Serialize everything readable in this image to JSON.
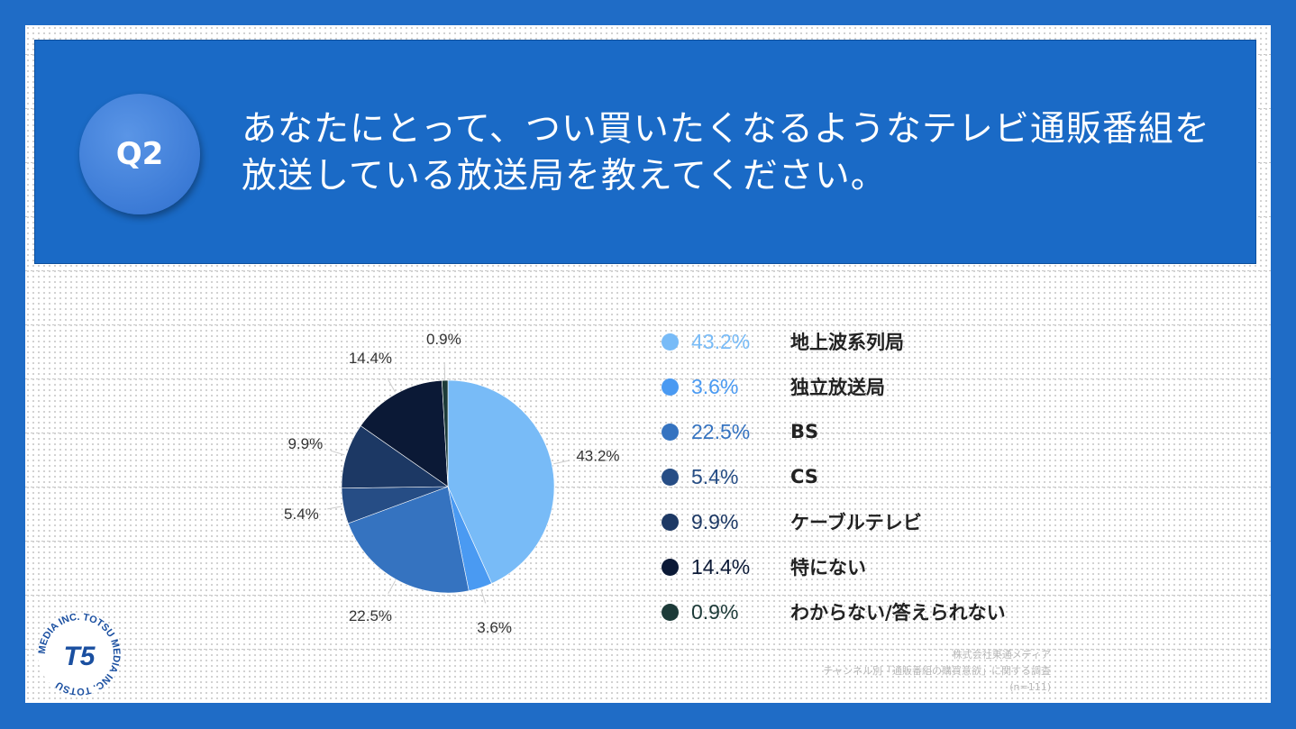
{
  "question": {
    "badge": "Q2",
    "line1": "あなたにとって、つい買いたくなるようなテレビ通販番組を",
    "line2": "放送している放送局を教えてください。"
  },
  "chart_data": {
    "type": "pie",
    "title": "",
    "categories": [
      "地上波系列局",
      "独立放送局",
      "BS",
      "CS",
      "ケーブルテレビ",
      "特にない",
      "わからない/答えられない"
    ],
    "values": [
      43.2,
      3.6,
      22.5,
      5.4,
      9.9,
      14.4,
      0.9
    ],
    "labels": [
      "43.2%",
      "3.6%",
      "22.5%",
      "5.4%",
      "9.9%",
      "14.4%",
      "0.9%"
    ],
    "colors": [
      "#78bbf7",
      "#4a9af2",
      "#3573c0",
      "#264d85",
      "#1c3864",
      "#0b1936",
      "#1c3a38"
    ],
    "legend_position": "right"
  },
  "legend": {
    "items": [
      {
        "pct": "43.2%",
        "label": "地上波系列局",
        "color": "#78bbf7",
        "text_color": "#78bbf7"
      },
      {
        "pct": "3.6%",
        "label": "独立放送局",
        "color": "#4a9af2",
        "text_color": "#4a9af2"
      },
      {
        "pct": "22.5%",
        "label": "BS",
        "color": "#3573c0",
        "text_color": "#3573c0"
      },
      {
        "pct": "5.4%",
        "label": "CS",
        "color": "#264d85",
        "text_color": "#264d85"
      },
      {
        "pct": "9.9%",
        "label": "ケーブルテレビ",
        "color": "#1c3864",
        "text_color": "#1c3864"
      },
      {
        "pct": "14.4%",
        "label": "特にない",
        "color": "#0b1936",
        "text_color": "#0b1936"
      },
      {
        "pct": "0.9%",
        "label": "わからない/答えられない",
        "color": "#1c3a38",
        "text_color": "#1c3a38"
      }
    ]
  },
  "source": {
    "company": "株式会社東通メディア",
    "survey": "チャンネル別「通販番組の購買意欲」に関する調査",
    "n": "(n=111)"
  },
  "logo": {
    "text": "MEDIA INC. TOTSU MEDIA INC. TOTSU",
    "mark": "T5"
  },
  "colors": {
    "background": "#1f6cc6",
    "header": "#1a6ac6"
  }
}
